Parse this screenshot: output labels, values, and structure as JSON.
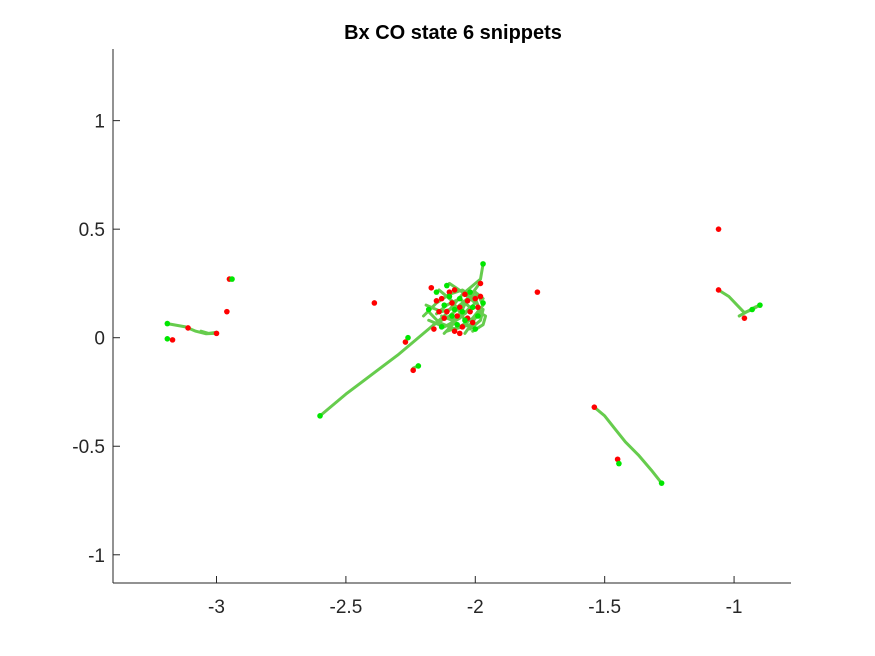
{
  "chart_data": {
    "type": "scatter",
    "title": "Bx  CO state 6 snippets",
    "xlabel": "",
    "ylabel": "",
    "xlim": [
      -3.4,
      -0.78
    ],
    "ylim": [
      -1.13,
      1.33
    ],
    "xticks": [
      -3,
      -2.5,
      -2,
      -1.5,
      -1
    ],
    "xtick_labels": [
      "-3",
      "-2.5",
      "-2",
      "-1.5",
      "-1"
    ],
    "yticks": [
      -1,
      -0.5,
      0,
      0.5,
      1
    ],
    "ytick_labels": [
      "-1",
      "-0.5",
      "0",
      "0.5",
      "1"
    ],
    "grid": false,
    "legend": "none",
    "colors": {
      "trajectory": "#66cc4d",
      "start": "#ff0000",
      "end": "#00e600",
      "axes": "#262626"
    },
    "trajectories": [
      [
        [
          -2.6,
          -0.36
        ],
        [
          -2.5,
          -0.26
        ],
        [
          -2.4,
          -0.17
        ],
        [
          -2.3,
          -0.08
        ],
        [
          -2.2,
          0.02
        ],
        [
          -2.12,
          0.1
        ],
        [
          -2.05,
          0.2
        ],
        [
          -1.98,
          0.27
        ],
        [
          -1.97,
          0.34
        ]
      ],
      [
        [
          -1.54,
          -0.32
        ],
        [
          -1.5,
          -0.36
        ],
        [
          -1.46,
          -0.42
        ],
        [
          -1.42,
          -0.48
        ],
        [
          -1.37,
          -0.54
        ],
        [
          -1.32,
          -0.61
        ],
        [
          -1.28,
          -0.67
        ]
      ],
      [
        [
          -3.19,
          0.065
        ],
        [
          -3.12,
          0.05
        ],
        [
          -3.08,
          0.03
        ],
        [
          -3.04,
          0.018
        ],
        [
          -3.01,
          0.02
        ]
      ],
      [
        [
          -3.06,
          0.03
        ],
        [
          -3.03,
          0.02
        ],
        [
          -3.0,
          0.025
        ]
      ],
      [
        [
          -1.06,
          0.22
        ],
        [
          -1.02,
          0.19
        ],
        [
          -0.98,
          0.14
        ],
        [
          -0.96,
          0.115
        ],
        [
          -0.93,
          0.13
        ],
        [
          -0.9,
          0.15
        ]
      ],
      [
        [
          -0.98,
          0.1
        ],
        [
          -0.95,
          0.12
        ],
        [
          -0.92,
          0.14
        ],
        [
          -0.9,
          0.15
        ]
      ],
      [
        [
          -1.45,
          -0.56
        ],
        [
          -1.445,
          -0.58
        ]
      ],
      [
        [
          -2.24,
          -0.14
        ],
        [
          -2.22,
          -0.13
        ]
      ],
      [
        [
          -2.2,
          0.1
        ],
        [
          -2.15,
          0.16
        ],
        [
          -2.1,
          0.2
        ],
        [
          -2.05,
          0.22
        ],
        [
          -2.0,
          0.18
        ],
        [
          -1.98,
          0.12
        ],
        [
          -2.02,
          0.06
        ],
        [
          -2.08,
          0.04
        ],
        [
          -2.14,
          0.07
        ],
        [
          -2.18,
          0.12
        ]
      ],
      [
        [
          -2.16,
          0.06
        ],
        [
          -2.1,
          0.1
        ],
        [
          -2.04,
          0.16
        ],
        [
          -1.99,
          0.2
        ],
        [
          -1.97,
          0.15
        ],
        [
          -2.01,
          0.09
        ],
        [
          -2.06,
          0.05
        ],
        [
          -2.11,
          0.03
        ]
      ],
      [
        [
          -2.14,
          0.22
        ],
        [
          -2.09,
          0.17
        ],
        [
          -2.05,
          0.1
        ],
        [
          -2.02,
          0.04
        ],
        [
          -1.98,
          0.08
        ],
        [
          -1.97,
          0.13
        ]
      ],
      [
        [
          -2.19,
          0.15
        ],
        [
          -2.13,
          0.12
        ],
        [
          -2.07,
          0.14
        ],
        [
          -2.02,
          0.19
        ],
        [
          -1.99,
          0.24
        ]
      ],
      [
        [
          -2.12,
          0.02
        ],
        [
          -2.08,
          0.07
        ],
        [
          -2.05,
          0.13
        ],
        [
          -2.03,
          0.18
        ],
        [
          -2.0,
          0.21
        ],
        [
          -1.97,
          0.18
        ]
      ],
      [
        [
          -2.18,
          0.08
        ],
        [
          -2.12,
          0.05
        ],
        [
          -2.06,
          0.09
        ],
        [
          -2.02,
          0.14
        ],
        [
          -2.06,
          0.18
        ],
        [
          -2.11,
          0.15
        ],
        [
          -2.15,
          0.11
        ]
      ],
      [
        [
          -2.1,
          0.25
        ],
        [
          -2.05,
          0.21
        ],
        [
          -2.0,
          0.16
        ],
        [
          -2.04,
          0.11
        ],
        [
          -2.09,
          0.08
        ],
        [
          -2.13,
          0.1
        ]
      ],
      [
        [
          -2.04,
          0.02
        ],
        [
          -2.01,
          0.07
        ],
        [
          -1.99,
          0.12
        ],
        [
          -1.96,
          0.1
        ],
        [
          -1.97,
          0.06
        ],
        [
          -2.01,
          0.03
        ]
      ]
    ],
    "start_points": [
      [
        -2.27,
        -0.02
      ],
      [
        -2.24,
        -0.15
      ],
      [
        -2.39,
        0.16
      ],
      [
        -1.76,
        0.21
      ],
      [
        -1.54,
        -0.32
      ],
      [
        -1.45,
        -0.56
      ],
      [
        -1.06,
        0.5
      ],
      [
        -1.06,
        0.22
      ],
      [
        -0.96,
        0.09
      ],
      [
        -3.17,
        -0.01
      ],
      [
        -3.11,
        0.045
      ],
      [
        -3.0,
        0.02
      ],
      [
        -2.95,
        0.27
      ],
      [
        -2.96,
        0.12
      ],
      [
        -2.17,
        0.23
      ],
      [
        -2.15,
        0.17
      ],
      [
        -2.13,
        0.18
      ],
      [
        -2.12,
        0.09
      ],
      [
        -2.11,
        0.12
      ],
      [
        -2.1,
        0.21
      ],
      [
        -2.09,
        0.16
      ],
      [
        -2.08,
        0.22
      ],
      [
        -2.08,
        0.03
      ],
      [
        -2.07,
        0.1
      ],
      [
        -2.06,
        0.14
      ],
      [
        -2.05,
        0.05
      ],
      [
        -2.04,
        0.2
      ],
      [
        -2.03,
        0.09
      ],
      [
        -2.02,
        0.12
      ],
      [
        -2.01,
        0.07
      ],
      [
        -2.0,
        0.18
      ],
      [
        -1.99,
        0.14
      ],
      [
        -1.98,
        0.25
      ],
      [
        -1.98,
        0.19
      ],
      [
        -2.14,
        0.12
      ],
      [
        -2.16,
        0.04
      ],
      [
        -2.06,
        0.02
      ],
      [
        -2.03,
        0.17
      ]
    ],
    "end_points": [
      [
        -2.6,
        -0.36
      ],
      [
        -1.97,
        0.34
      ],
      [
        -1.28,
        -0.67
      ],
      [
        -1.445,
        -0.58
      ],
      [
        -2.22,
        -0.13
      ],
      [
        -2.26,
        0.0
      ],
      [
        -3.19,
        0.065
      ],
      [
        -3.19,
        -0.005
      ],
      [
        -2.94,
        0.27
      ],
      [
        -0.9,
        0.15
      ],
      [
        -0.93,
        0.13
      ],
      [
        -2.18,
        0.13
      ],
      [
        -2.15,
        0.21
      ],
      [
        -2.13,
        0.05
      ],
      [
        -2.12,
        0.15
      ],
      [
        -2.1,
        0.19
      ],
      [
        -2.09,
        0.1
      ],
      [
        -2.07,
        0.06
      ],
      [
        -2.06,
        0.18
      ],
      [
        -2.05,
        0.12
      ],
      [
        -2.04,
        0.08
      ],
      [
        -2.02,
        0.21
      ],
      [
        -2.0,
        0.04
      ],
      [
        -1.99,
        0.1
      ],
      [
        -1.97,
        0.16
      ],
      [
        -2.11,
        0.24
      ],
      [
        -2.01,
        0.14
      ],
      [
        -2.08,
        0.13
      ]
    ]
  }
}
